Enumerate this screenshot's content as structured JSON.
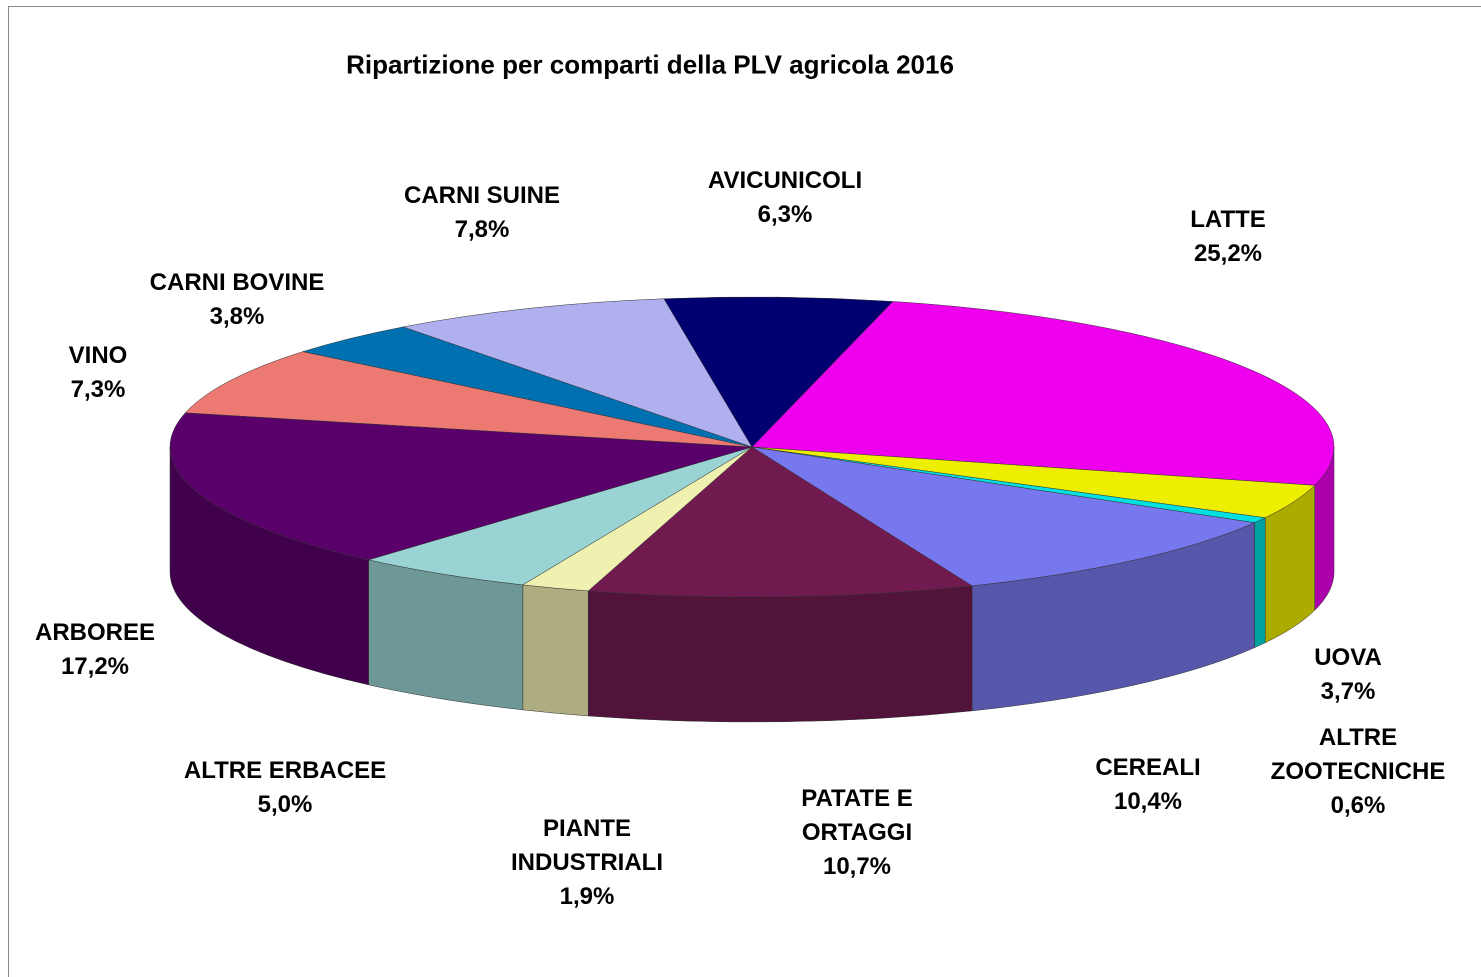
{
  "chart_data": {
    "type": "pie3d",
    "title": "Ripartizione per comparti della PLV agricola 2016",
    "categories": [
      "LATTE",
      "UOVA",
      "ALTRE ZOOTECNICHE",
      "CEREALI",
      "PATATE E ORTAGGI",
      "PIANTE INDUSTRIALI",
      "ALTRE ERBACEE",
      "ARBOREE",
      "VINO",
      "CARNI BOVINE",
      "CARNI SUINE",
      "AVICUNICOLI"
    ],
    "values": [
      25.2,
      3.7,
      0.6,
      10.4,
      10.7,
      1.9,
      5.0,
      17.2,
      7.3,
      3.8,
      7.8,
      6.3
    ],
    "value_labels": [
      "25,2%",
      "3,7%",
      "0,6%",
      "10,4%",
      "10,7%",
      "1,9%",
      "5,0%",
      "17,2%",
      "7,3%",
      "3,8%",
      "7,8%",
      "6,3%"
    ],
    "colors": [
      "#ee00ee",
      "#eeee00",
      "#00e0e0",
      "#7777ee",
      "#701a50",
      "#f0f0b0",
      "#99d3d3",
      "#5a006a",
      "#ec7a72",
      "#0070b0",
      "#b0b0ee",
      "#000070"
    ]
  }
}
